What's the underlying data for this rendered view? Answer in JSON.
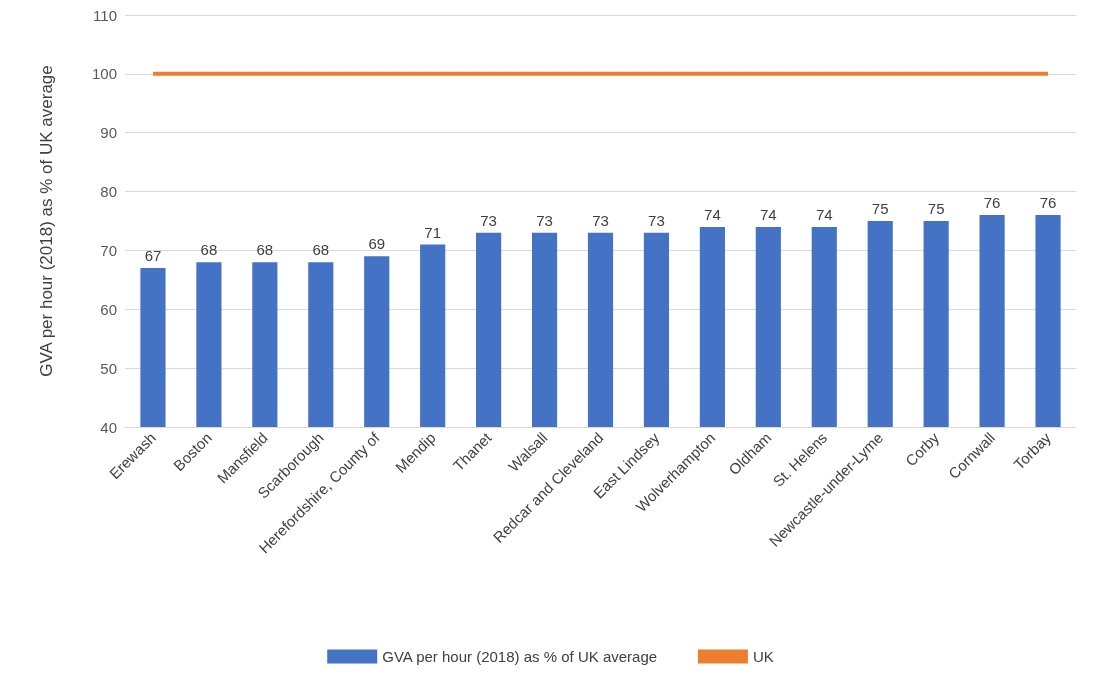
{
  "chart_data": {
    "type": "bar",
    "ylabel": "GVA per hour (2018) as % of UK average",
    "categories": [
      "Erewash",
      "Boston",
      "Mansfield",
      "Scarborough",
      "Herefordshire, County of",
      "Mendip",
      "Thanet",
      "Walsall",
      "Redcar and Cleveland",
      "East Lindsey",
      "Wolverhampton",
      "Oldham",
      "St. Helens",
      "Newcastle-under-Lyme",
      "Corby",
      "Cornwall",
      "Torbay"
    ],
    "series": [
      {
        "name": "GVA per hour (2018) as % of UK average",
        "color": "#4472c4",
        "values": [
          67,
          68,
          68,
          68,
          69,
          71,
          73,
          73,
          73,
          73,
          74,
          74,
          74,
          75,
          75,
          76,
          76
        ],
        "data_labels": true
      },
      {
        "name": "UK",
        "type": "line",
        "color": "#ed7d31",
        "values": [
          100,
          100,
          100,
          100,
          100,
          100,
          100,
          100,
          100,
          100,
          100,
          100,
          100,
          100,
          100,
          100,
          100
        ],
        "marker": "none"
      }
    ],
    "ylim": [
      40,
      110
    ],
    "yticks": [
      40,
      50,
      60,
      70,
      80,
      90,
      100,
      110
    ],
    "grid": "y",
    "legend": "bottom"
  }
}
